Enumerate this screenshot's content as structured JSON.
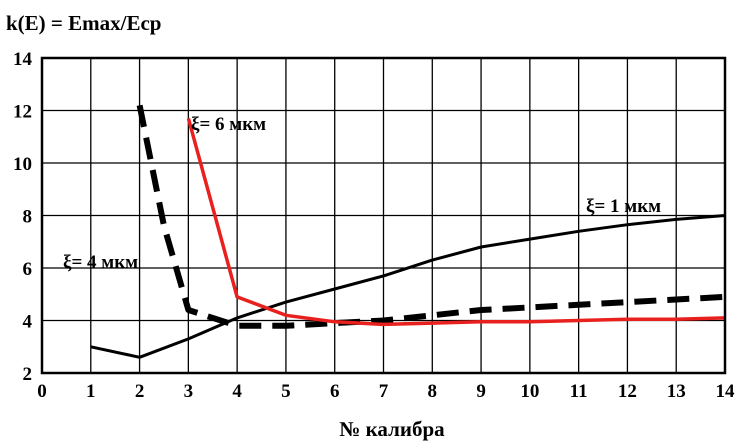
{
  "chart_data": {
    "type": "line",
    "title": "k(E) = Emax/Ecp",
    "xlabel": "№ калибра",
    "ylabel": "",
    "xlim": [
      0,
      14
    ],
    "ylim": [
      2,
      14
    ],
    "x_ticks": [
      "0",
      "1",
      "2",
      "3",
      "4",
      "5",
      "6",
      "7",
      "8",
      "9",
      "10",
      "11",
      "12",
      "13",
      "14"
    ],
    "y_ticks": [
      "2",
      "4",
      "6",
      "8",
      "10",
      "12",
      "14"
    ],
    "grid": true,
    "series": [
      {
        "name": "ξ= 1 мкм",
        "color": "#000000",
        "style": "solid",
        "x": [
          1,
          2,
          3,
          4,
          5,
          6,
          7,
          8,
          9,
          10,
          11,
          12,
          13,
          14
        ],
        "y": [
          3.0,
          2.6,
          3.3,
          4.1,
          4.7,
          5.2,
          5.7,
          6.3,
          6.8,
          7.1,
          7.4,
          7.65,
          7.85,
          8.0
        ]
      },
      {
        "name": "ξ= 4 мкм",
        "color": "#000000",
        "style": "dashed",
        "x": [
          2,
          2.5,
          3,
          4,
          5,
          6,
          7,
          8,
          9,
          10,
          11,
          12,
          13,
          14
        ],
        "y": [
          12.2,
          7.6,
          4.4,
          3.8,
          3.8,
          3.9,
          4.0,
          4.2,
          4.4,
          4.5,
          4.6,
          4.7,
          4.8,
          4.9
        ]
      },
      {
        "name": "ξ= 6 мкм",
        "color": "#e8201e",
        "style": "solid",
        "x": [
          3,
          4,
          5,
          6,
          7,
          8,
          9,
          10,
          11,
          12,
          13,
          14
        ],
        "y": [
          11.7,
          4.9,
          4.2,
          3.95,
          3.85,
          3.9,
          3.95,
          3.95,
          4.0,
          4.05,
          4.05,
          4.1
        ]
      }
    ]
  }
}
